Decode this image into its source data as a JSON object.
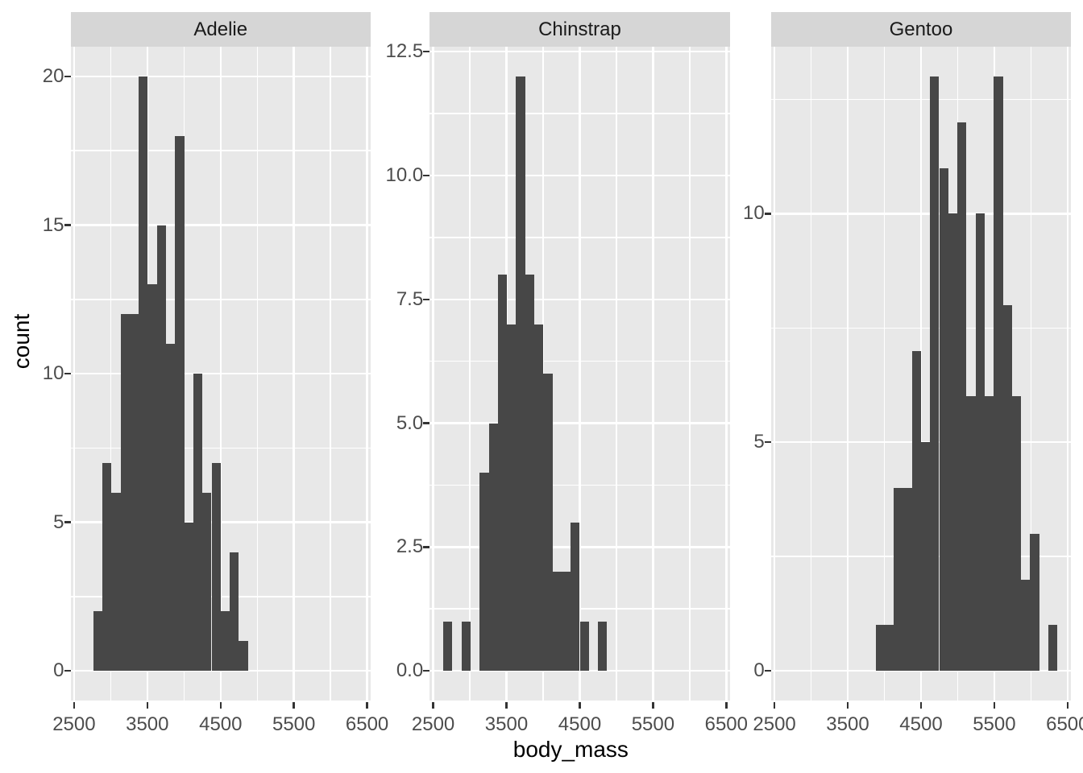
{
  "chart_data": {
    "type": "histogram",
    "title": "",
    "xlabel": "body_mass",
    "ylabel": "count",
    "legend": "none",
    "grid": "on",
    "x_domain": [
      2451.72,
      6548.28
    ],
    "x_tick_values": [
      2500,
      3500,
      4500,
      5500,
      6500
    ],
    "x_tick_labels": [
      "2500",
      "3500",
      "4500",
      "5500",
      "6500"
    ],
    "x_minor_values": [
      3000,
      4000,
      5000,
      6000
    ],
    "bin_start": 2637.93,
    "bin_width": 124.138,
    "facets": [
      {
        "label": "Adelie",
        "y_max": 20,
        "y_tick_values": [
          0,
          5,
          10,
          15,
          20
        ],
        "y_tick_labels": [
          "0",
          "5",
          "10",
          "15",
          "20"
        ],
        "y_minor_values": [
          2.5,
          7.5,
          12.5,
          17.5
        ],
        "first_bin": 1,
        "counts": [
          2,
          7,
          6,
          12,
          12,
          20,
          13,
          15,
          11,
          18,
          5,
          10,
          6,
          7,
          2,
          4,
          1
        ]
      },
      {
        "label": "Chinstrap",
        "y_max": 12,
        "y_tick_values": [
          0,
          2.5,
          5,
          7.5,
          10,
          12.5
        ],
        "y_tick_labels": [
          "0.0",
          "2.5",
          "5.0",
          "7.5",
          "10.0",
          "12.5"
        ],
        "y_minor_values": [
          1.25,
          3.75,
          6.25,
          8.75,
          11.25
        ],
        "first_bin": 0,
        "counts": [
          1,
          0,
          1,
          0,
          4,
          5,
          8,
          7,
          12,
          8,
          7,
          6,
          2,
          2,
          3,
          1,
          0,
          1
        ]
      },
      {
        "label": "Gentoo",
        "y_max": 13,
        "y_tick_values": [
          0,
          5,
          10
        ],
        "y_tick_labels": [
          "0",
          "5",
          "10"
        ],
        "y_minor_values": [
          2.5,
          7.5,
          12.5
        ],
        "first_bin": 10,
        "counts": [
          1,
          1,
          4,
          4,
          7,
          5,
          13,
          11,
          10,
          12,
          6,
          10,
          6,
          13,
          8,
          6,
          2,
          3,
          0,
          1
        ]
      }
    ],
    "colors": {
      "bar": "#474747",
      "panel_background": "#E8E8E8",
      "gridline": "#FFFFFF",
      "strip_background": "#D6D6D6",
      "strip_text": "#1A1A1A",
      "axis_text": "#4D4D4D",
      "axis_title": "#000000",
      "tick_mark": "#333333"
    }
  }
}
